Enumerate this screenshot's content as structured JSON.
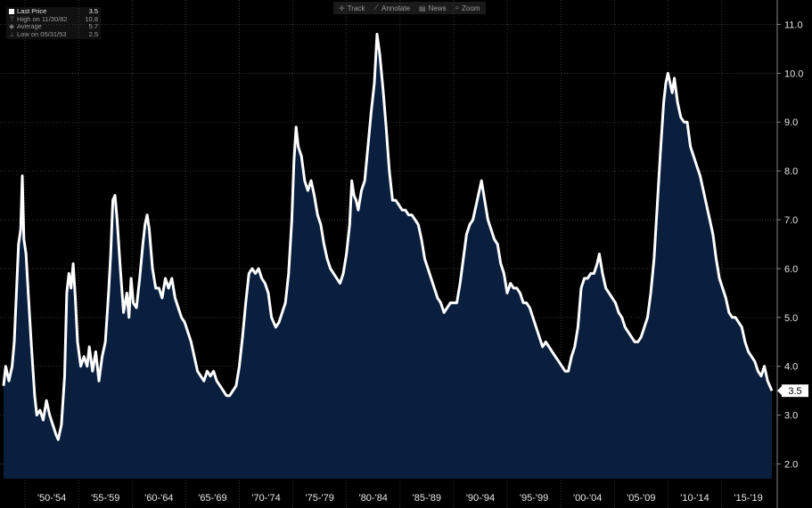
{
  "toolbar": [
    {
      "icon": "crosshair-icon",
      "glyph": "✛",
      "label": "Track"
    },
    {
      "icon": "pencil-icon",
      "glyph": "⟋",
      "label": "Annotate"
    },
    {
      "icon": "news-icon",
      "glyph": "▤",
      "label": "News"
    },
    {
      "icon": "zoom-icon",
      "glyph": "⌕",
      "label": "Zoom"
    }
  ],
  "legend": {
    "last": {
      "label": "Last Price",
      "value": "3.5"
    },
    "high": {
      "label": "High on 11/30/82",
      "value": "10.8"
    },
    "avg": {
      "label": "Average",
      "value": "5.7"
    },
    "low": {
      "label": "Low on 05/31/53",
      "value": "2.5"
    }
  },
  "chart_data": {
    "type": "area",
    "line_color": "#ffffff",
    "fill_color": "#0a1f3d",
    "background": "#000000",
    "grid": true,
    "ylim": [
      1.7,
      11.5
    ],
    "xlim": [
      1948.0,
      2019.7
    ],
    "y_ticks": [
      "2.0",
      "3.0",
      "4.0",
      "5.0",
      "6.0",
      "7.0",
      "8.0",
      "9.0",
      "10.0",
      "11.0"
    ],
    "x_ticks": [
      {
        "label": "'50-'54",
        "x": 1952.5
      },
      {
        "label": "'55-'59",
        "x": 1957.5
      },
      {
        "label": "'60-'64",
        "x": 1962.5
      },
      {
        "label": "'65-'69",
        "x": 1967.5
      },
      {
        "label": "'70-'74",
        "x": 1972.5
      },
      {
        "label": "'75-'79",
        "x": 1977.5
      },
      {
        "label": "'80-'84",
        "x": 1982.5
      },
      {
        "label": "'85-'89",
        "x": 1987.5
      },
      {
        "label": "'90-'94",
        "x": 1992.5
      },
      {
        "label": "'95-'99",
        "x": 1997.5
      },
      {
        "label": "'00-'04",
        "x": 2002.5
      },
      {
        "label": "'05-'09",
        "x": 2007.5
      },
      {
        "label": "'10-'14",
        "x": 2012.5
      },
      {
        "label": "'15-'19",
        "x": 2017.5
      }
    ],
    "x_boundaries": [
      1950,
      1955,
      1960,
      1965,
      1970,
      1975,
      1980,
      1985,
      1990,
      1995,
      2000,
      2005,
      2010,
      2015
    ],
    "last_value_label": "3.5",
    "points": [
      [
        1948.0,
        3.6
      ],
      [
        1948.2,
        4.0
      ],
      [
        1948.5,
        3.7
      ],
      [
        1948.8,
        4.0
      ],
      [
        1949.0,
        4.5
      ],
      [
        1949.2,
        5.5
      ],
      [
        1949.4,
        6.5
      ],
      [
        1949.6,
        6.8
      ],
      [
        1949.75,
        7.9
      ],
      [
        1949.9,
        6.6
      ],
      [
        1950.1,
        6.3
      ],
      [
        1950.3,
        5.5
      ],
      [
        1950.6,
        4.4
      ],
      [
        1950.9,
        3.4
      ],
      [
        1951.1,
        3.0
      ],
      [
        1951.4,
        3.1
      ],
      [
        1951.7,
        2.9
      ],
      [
        1952.0,
        3.3
      ],
      [
        1952.3,
        3.0
      ],
      [
        1952.6,
        2.8
      ],
      [
        1952.9,
        2.6
      ],
      [
        1953.1,
        2.5
      ],
      [
        1953.4,
        2.8
      ],
      [
        1953.7,
        3.8
      ],
      [
        1953.9,
        5.5
      ],
      [
        1954.1,
        5.9
      ],
      [
        1954.3,
        5.6
      ],
      [
        1954.5,
        6.1
      ],
      [
        1954.7,
        5.4
      ],
      [
        1954.9,
        4.5
      ],
      [
        1955.2,
        4.0
      ],
      [
        1955.5,
        4.2
      ],
      [
        1955.8,
        4.0
      ],
      [
        1956.0,
        4.4
      ],
      [
        1956.3,
        3.9
      ],
      [
        1956.6,
        4.3
      ],
      [
        1956.9,
        3.7
      ],
      [
        1957.2,
        4.2
      ],
      [
        1957.5,
        4.5
      ],
      [
        1957.8,
        5.5
      ],
      [
        1958.0,
        6.3
      ],
      [
        1958.2,
        7.4
      ],
      [
        1958.4,
        7.5
      ],
      [
        1958.6,
        7.0
      ],
      [
        1958.9,
        6.0
      ],
      [
        1959.2,
        5.1
      ],
      [
        1959.5,
        5.5
      ],
      [
        1959.7,
        5.0
      ],
      [
        1959.9,
        5.8
      ],
      [
        1960.1,
        5.3
      ],
      [
        1960.4,
        5.2
      ],
      [
        1960.7,
        5.8
      ],
      [
        1961.0,
        6.5
      ],
      [
        1961.2,
        6.9
      ],
      [
        1961.4,
        7.1
      ],
      [
        1961.6,
        6.8
      ],
      [
        1961.9,
        6.0
      ],
      [
        1962.2,
        5.6
      ],
      [
        1962.5,
        5.6
      ],
      [
        1962.8,
        5.4
      ],
      [
        1963.1,
        5.8
      ],
      [
        1963.4,
        5.6
      ],
      [
        1963.7,
        5.8
      ],
      [
        1964.0,
        5.4
      ],
      [
        1964.3,
        5.2
      ],
      [
        1964.6,
        5.0
      ],
      [
        1964.9,
        4.9
      ],
      [
        1965.2,
        4.7
      ],
      [
        1965.5,
        4.5
      ],
      [
        1965.8,
        4.2
      ],
      [
        1966.1,
        3.9
      ],
      [
        1966.4,
        3.8
      ],
      [
        1966.7,
        3.7
      ],
      [
        1967.0,
        3.9
      ],
      [
        1967.3,
        3.8
      ],
      [
        1967.6,
        3.9
      ],
      [
        1967.9,
        3.7
      ],
      [
        1968.2,
        3.6
      ],
      [
        1968.5,
        3.5
      ],
      [
        1968.8,
        3.4
      ],
      [
        1969.1,
        3.4
      ],
      [
        1969.4,
        3.5
      ],
      [
        1969.7,
        3.6
      ],
      [
        1970.0,
        4.0
      ],
      [
        1970.3,
        4.6
      ],
      [
        1970.6,
        5.3
      ],
      [
        1970.9,
        5.9
      ],
      [
        1971.2,
        6.0
      ],
      [
        1971.5,
        5.9
      ],
      [
        1971.8,
        6.0
      ],
      [
        1972.1,
        5.8
      ],
      [
        1972.4,
        5.7
      ],
      [
        1972.7,
        5.5
      ],
      [
        1973.0,
        5.0
      ],
      [
        1973.4,
        4.8
      ],
      [
        1973.7,
        4.9
      ],
      [
        1974.0,
        5.1
      ],
      [
        1974.3,
        5.3
      ],
      [
        1974.6,
        5.9
      ],
      [
        1974.9,
        7.0
      ],
      [
        1975.1,
        8.2
      ],
      [
        1975.3,
        8.9
      ],
      [
        1975.5,
        8.5
      ],
      [
        1975.8,
        8.3
      ],
      [
        1976.1,
        7.8
      ],
      [
        1976.4,
        7.6
      ],
      [
        1976.7,
        7.8
      ],
      [
        1977.0,
        7.5
      ],
      [
        1977.3,
        7.1
      ],
      [
        1977.6,
        6.9
      ],
      [
        1977.9,
        6.5
      ],
      [
        1978.2,
        6.2
      ],
      [
        1978.5,
        6.0
      ],
      [
        1978.8,
        5.9
      ],
      [
        1979.1,
        5.8
      ],
      [
        1979.4,
        5.7
      ],
      [
        1979.7,
        5.9
      ],
      [
        1980.0,
        6.3
      ],
      [
        1980.3,
        6.9
      ],
      [
        1980.5,
        7.8
      ],
      [
        1980.7,
        7.5
      ],
      [
        1980.9,
        7.4
      ],
      [
        1981.1,
        7.2
      ],
      [
        1981.4,
        7.6
      ],
      [
        1981.7,
        7.8
      ],
      [
        1982.0,
        8.5
      ],
      [
        1982.3,
        9.2
      ],
      [
        1982.6,
        9.8
      ],
      [
        1982.85,
        10.8
      ],
      [
        1983.1,
        10.4
      ],
      [
        1983.4,
        9.7
      ],
      [
        1983.7,
        8.9
      ],
      [
        1984.0,
        8.0
      ],
      [
        1984.3,
        7.4
      ],
      [
        1984.6,
        7.4
      ],
      [
        1984.9,
        7.3
      ],
      [
        1985.2,
        7.2
      ],
      [
        1985.5,
        7.2
      ],
      [
        1985.8,
        7.1
      ],
      [
        1986.1,
        7.1
      ],
      [
        1986.4,
        7.0
      ],
      [
        1986.7,
        6.9
      ],
      [
        1987.0,
        6.6
      ],
      [
        1987.3,
        6.2
      ],
      [
        1987.6,
        6.0
      ],
      [
        1987.9,
        5.8
      ],
      [
        1988.2,
        5.6
      ],
      [
        1988.5,
        5.4
      ],
      [
        1988.8,
        5.3
      ],
      [
        1989.1,
        5.1
      ],
      [
        1989.4,
        5.2
      ],
      [
        1989.7,
        5.3
      ],
      [
        1990.0,
        5.3
      ],
      [
        1990.3,
        5.3
      ],
      [
        1990.6,
        5.7
      ],
      [
        1990.9,
        6.2
      ],
      [
        1991.2,
        6.7
      ],
      [
        1991.5,
        6.9
      ],
      [
        1991.8,
        7.0
      ],
      [
        1992.1,
        7.3
      ],
      [
        1992.4,
        7.6
      ],
      [
        1992.6,
        7.8
      ],
      [
        1992.9,
        7.4
      ],
      [
        1993.2,
        7.0
      ],
      [
        1993.5,
        6.8
      ],
      [
        1993.8,
        6.6
      ],
      [
        1994.1,
        6.5
      ],
      [
        1994.4,
        6.1
      ],
      [
        1994.7,
        5.9
      ],
      [
        1995.0,
        5.5
      ],
      [
        1995.3,
        5.7
      ],
      [
        1995.6,
        5.6
      ],
      [
        1995.9,
        5.6
      ],
      [
        1996.2,
        5.5
      ],
      [
        1996.5,
        5.3
      ],
      [
        1996.8,
        5.3
      ],
      [
        1997.1,
        5.2
      ],
      [
        1997.4,
        5.0
      ],
      [
        1997.7,
        4.8
      ],
      [
        1998.0,
        4.6
      ],
      [
        1998.3,
        4.4
      ],
      [
        1998.6,
        4.5
      ],
      [
        1998.9,
        4.4
      ],
      [
        1999.2,
        4.3
      ],
      [
        1999.5,
        4.2
      ],
      [
        1999.8,
        4.1
      ],
      [
        2000.1,
        4.0
      ],
      [
        2000.4,
        3.9
      ],
      [
        2000.7,
        3.9
      ],
      [
        2001.0,
        4.2
      ],
      [
        2001.3,
        4.4
      ],
      [
        2001.6,
        4.8
      ],
      [
        2001.9,
        5.6
      ],
      [
        2002.2,
        5.8
      ],
      [
        2002.5,
        5.8
      ],
      [
        2002.8,
        5.9
      ],
      [
        2003.1,
        5.9
      ],
      [
        2003.4,
        6.1
      ],
      [
        2003.6,
        6.3
      ],
      [
        2003.9,
        5.9
      ],
      [
        2004.2,
        5.6
      ],
      [
        2004.5,
        5.5
      ],
      [
        2004.8,
        5.4
      ],
      [
        2005.1,
        5.3
      ],
      [
        2005.4,
        5.1
      ],
      [
        2005.7,
        5.0
      ],
      [
        2006.0,
        4.8
      ],
      [
        2006.3,
        4.7
      ],
      [
        2006.6,
        4.6
      ],
      [
        2006.9,
        4.5
      ],
      [
        2007.2,
        4.5
      ],
      [
        2007.5,
        4.6
      ],
      [
        2007.8,
        4.8
      ],
      [
        2008.1,
        5.0
      ],
      [
        2008.4,
        5.5
      ],
      [
        2008.7,
        6.2
      ],
      [
        2009.0,
        7.3
      ],
      [
        2009.3,
        8.4
      ],
      [
        2009.6,
        9.4
      ],
      [
        2009.8,
        9.8
      ],
      [
        2010.0,
        10.0
      ],
      [
        2010.2,
        9.8
      ],
      [
        2010.4,
        9.6
      ],
      [
        2010.6,
        9.9
      ],
      [
        2010.9,
        9.4
      ],
      [
        2011.2,
        9.1
      ],
      [
        2011.5,
        9.0
      ],
      [
        2011.8,
        9.0
      ],
      [
        2012.1,
        8.5
      ],
      [
        2012.4,
        8.3
      ],
      [
        2012.7,
        8.1
      ],
      [
        2013.0,
        7.9
      ],
      [
        2013.3,
        7.6
      ],
      [
        2013.6,
        7.3
      ],
      [
        2013.9,
        7.0
      ],
      [
        2014.2,
        6.7
      ],
      [
        2014.5,
        6.2
      ],
      [
        2014.8,
        5.8
      ],
      [
        2015.1,
        5.6
      ],
      [
        2015.4,
        5.4
      ],
      [
        2015.7,
        5.1
      ],
      [
        2016.0,
        5.0
      ],
      [
        2016.3,
        5.0
      ],
      [
        2016.6,
        4.9
      ],
      [
        2016.9,
        4.8
      ],
      [
        2017.2,
        4.5
      ],
      [
        2017.5,
        4.3
      ],
      [
        2017.8,
        4.2
      ],
      [
        2018.1,
        4.1
      ],
      [
        2018.4,
        3.9
      ],
      [
        2018.7,
        3.8
      ],
      [
        2019.0,
        4.0
      ],
      [
        2019.3,
        3.7
      ],
      [
        2019.7,
        3.5
      ]
    ]
  }
}
